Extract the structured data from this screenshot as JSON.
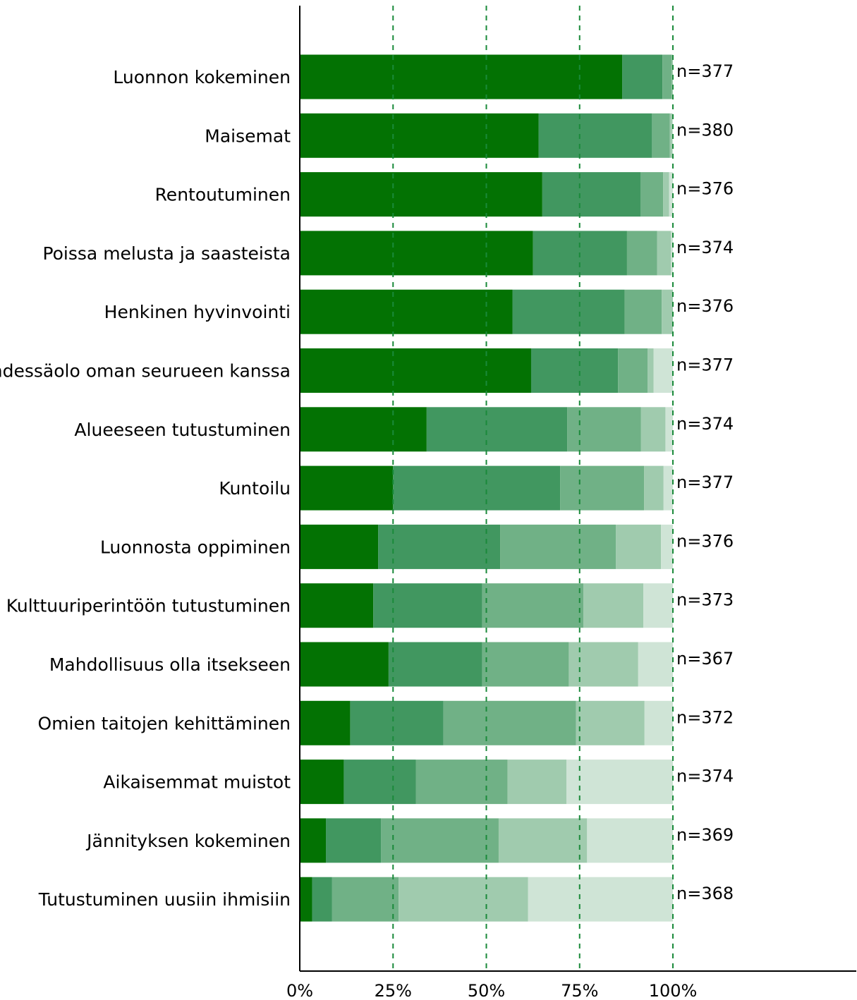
{
  "chart_data": {
    "type": "bar",
    "orientation": "horizontal",
    "stacked": true,
    "categories": [
      "Luonnon kokeminen",
      "Maisemat",
      "Rentoutuminen",
      "Poissa melusta ja saasteista",
      "Henkinen hyvinvointi",
      "Yhdessäolo oman seurueen kanssa",
      "Alueeseen tutustuminen",
      "Kuntoilu",
      "Luonnosta oppiminen",
      "Kulttuuriperintöön tutustuminen",
      "Mahdollisuus olla itsekseen",
      "Omien taitojen kehittäminen",
      "Aikaisemmat muistot",
      "Jännityksen kokeminen",
      "Tutustuminen uusiin ihmisiin"
    ],
    "n_labels": [
      "n=377",
      "n=380",
      "n=376",
      "n=374",
      "n=376",
      "n=377",
      "n=374",
      "n=377",
      "n=376",
      "n=373",
      "n=367",
      "n=372",
      "n=374",
      "n=369",
      "n=368"
    ],
    "series": [
      {
        "color": "#037203",
        "values": [
          86.4,
          64.0,
          65.0,
          62.5,
          57.0,
          62.0,
          34.0,
          25.0,
          21.0,
          19.7,
          23.8,
          13.5,
          11.8,
          7.0,
          3.3
        ]
      },
      {
        "color": "#419760",
        "values": [
          10.8,
          30.4,
          26.3,
          25.2,
          30.1,
          23.3,
          37.7,
          44.8,
          32.7,
          29.2,
          25.1,
          25.0,
          19.3,
          14.8,
          5.3
        ]
      },
      {
        "color": "#70b186",
        "values": [
          2.5,
          4.8,
          6.1,
          8.1,
          9.9,
          7.9,
          19.7,
          22.5,
          31.0,
          27.1,
          23.2,
          35.5,
          24.6,
          31.5,
          17.9
        ]
      },
      {
        "color": "#a0cbae",
        "values": [
          0.3,
          0.6,
          1.6,
          3.7,
          3.0,
          1.6,
          6.6,
          5.2,
          12.1,
          16.1,
          18.6,
          18.4,
          15.8,
          23.7,
          34.7
        ]
      },
      {
        "color": "#cfe4d6",
        "values": [
          0.0,
          0.2,
          1.0,
          0.5,
          0.0,
          5.2,
          2.0,
          2.5,
          3.2,
          7.9,
          9.3,
          7.6,
          28.5,
          23.0,
          38.8
        ]
      }
    ],
    "xlim": [
      0,
      100
    ],
    "xticks": [
      "0%",
      "25%",
      "50%",
      "75%",
      "100%"
    ],
    "grid": "vertical dashed at 25% intervals",
    "legend": "none"
  }
}
